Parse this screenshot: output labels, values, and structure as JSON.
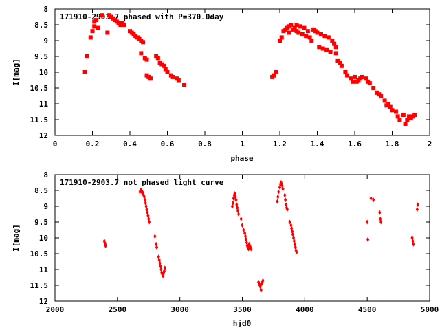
{
  "chart_data": [
    {
      "type": "scatter",
      "title": "171910-2903.7 phased with P=370.0day",
      "xlabel": "phase",
      "ylabel": "I[mag]",
      "xlim": [
        0,
        2
      ],
      "ylim": [
        8,
        12
      ],
      "y_inverted": true,
      "xticks": [
        "0",
        "0.2",
        "0.4",
        "0.6",
        "0.8",
        "1",
        "1.2",
        "1.4",
        "1.6",
        "1.8",
        "2"
      ],
      "yticks": [
        "8",
        "8.5",
        "9",
        "9.5",
        "10",
        "10.5",
        "11",
        "11.5",
        "12"
      ],
      "marker": "filled-square",
      "color": "#ff0000",
      "series": [
        {
          "x": [
            0.16,
            0.17,
            0.19,
            0.2,
            0.21,
            0.21,
            0.22,
            0.23,
            0.25,
            0.28,
            0.29,
            0.3,
            0.31,
            0.32,
            0.33,
            0.34,
            0.35,
            0.36,
            0.36,
            0.37,
            0.4,
            0.41,
            0.42,
            0.43,
            0.44,
            0.45,
            0.46,
            0.46,
            0.47,
            0.48,
            0.49,
            0.49,
            0.5,
            0.51,
            0.54,
            0.55,
            0.56,
            0.57,
            0.58,
            0.59,
            0.6,
            0.62,
            0.63,
            0.65,
            0.66,
            0.69,
            1.16,
            1.17,
            1.18,
            1.2,
            1.21,
            1.22,
            1.23,
            1.24,
            1.25,
            1.25,
            1.26,
            1.27,
            1.28,
            1.29,
            1.29,
            1.3,
            1.31,
            1.32,
            1.33,
            1.34,
            1.35,
            1.36,
            1.37,
            1.38,
            1.39,
            1.4,
            1.41,
            1.42,
            1.43,
            1.44,
            1.45,
            1.46,
            1.47,
            1.48,
            1.49,
            1.5,
            1.5,
            1.51,
            1.52,
            1.53,
            1.55,
            1.56,
            1.58,
            1.59,
            1.6,
            1.61,
            1.62,
            1.63,
            1.64,
            1.66,
            1.67,
            1.68,
            1.7,
            1.72,
            1.73,
            1.74,
            1.76,
            1.77,
            1.78,
            1.79,
            1.8,
            1.82,
            1.83,
            1.84,
            1.86,
            1.87,
            1.88,
            1.89,
            1.9,
            1.91,
            1.92
          ],
          "y": [
            10.0,
            9.5,
            8.9,
            8.7,
            8.55,
            8.4,
            8.35,
            8.6,
            8.2,
            8.75,
            8.2,
            8.25,
            8.3,
            8.35,
            8.4,
            8.45,
            8.5,
            8.45,
            8.45,
            8.5,
            8.7,
            8.75,
            8.8,
            8.85,
            8.9,
            8.95,
            9.0,
            9.4,
            9.05,
            9.55,
            9.6,
            10.1,
            10.15,
            10.2,
            9.5,
            9.55,
            9.7,
            9.75,
            9.8,
            9.9,
            10.0,
            10.1,
            10.15,
            10.2,
            10.25,
            10.4,
            10.15,
            10.1,
            10.0,
            9.0,
            8.9,
            8.7,
            8.65,
            8.6,
            8.55,
            8.75,
            8.5,
            8.65,
            8.6,
            8.7,
            8.5,
            8.75,
            8.55,
            8.8,
            8.6,
            8.85,
            8.7,
            8.9,
            9.0,
            8.65,
            8.7,
            8.75,
            9.2,
            8.8,
            9.25,
            8.85,
            9.3,
            8.9,
            9.35,
            9.0,
            9.1,
            9.4,
            9.2,
            9.65,
            9.7,
            9.8,
            10.0,
            10.1,
            10.2,
            10.3,
            10.15,
            10.3,
            10.25,
            10.2,
            10.15,
            10.2,
            10.3,
            10.35,
            10.5,
            10.65,
            10.7,
            10.75,
            10.9,
            11.05,
            11.0,
            11.1,
            11.2,
            11.25,
            11.4,
            11.5,
            11.35,
            11.65,
            11.5,
            11.4,
            11.45,
            11.4,
            11.35
          ]
        }
      ]
    },
    {
      "type": "scatter",
      "title": "171910-2903.7 not phased light curve",
      "xlabel": "hjd0",
      "ylabel": "I[mag]",
      "xlim": [
        2000,
        5000
      ],
      "ylim": [
        8,
        12
      ],
      "y_inverted": true,
      "xticks": [
        "2000",
        "2500",
        "3000",
        "3500",
        "4000",
        "4500",
        "5000"
      ],
      "yticks": [
        "8",
        "8.5",
        "9",
        "9.5",
        "10",
        "10.5",
        "11",
        "11.5",
        "12"
      ],
      "marker": "small-diamond",
      "color": "#ff0000",
      "series": [
        {
          "x": [
            2395,
            2398,
            2402,
            2405,
            2680,
            2685,
            2690,
            2695,
            2700,
            2705,
            2710,
            2715,
            2720,
            2725,
            2730,
            2735,
            2740,
            2745,
            2750,
            2755,
            2800,
            2810,
            2815,
            2830,
            2835,
            2840,
            2845,
            2850,
            2855,
            2860,
            2865,
            2870,
            2875,
            2880,
            3420,
            3425,
            3430,
            3435,
            3440,
            3445,
            3450,
            3455,
            3460,
            3465,
            3470,
            3490,
            3500,
            3510,
            3520,
            3525,
            3530,
            3535,
            3540,
            3545,
            3550,
            3555,
            3560,
            3565,
            3570,
            3630,
            3635,
            3640,
            3645,
            3650,
            3655,
            3660,
            3665,
            3780,
            3785,
            3790,
            3800,
            3805,
            3810,
            3815,
            3820,
            3825,
            3840,
            3845,
            3850,
            3855,
            3860,
            3880,
            3890,
            3895,
            3900,
            3905,
            3910,
            3915,
            3920,
            3925,
            3930,
            3935,
            4500,
            4505,
            4530,
            4550,
            4600,
            4605,
            4610,
            4860,
            4865,
            4870,
            4900,
            4905
          ],
          "y": [
            10.1,
            10.15,
            10.2,
            10.25,
            8.55,
            8.5,
            8.5,
            8.55,
            8.55,
            8.6,
            8.65,
            8.7,
            8.8,
            8.9,
            9.0,
            9.1,
            9.2,
            9.3,
            9.4,
            9.5,
            9.95,
            10.2,
            10.3,
            10.6,
            10.7,
            10.8,
            10.9,
            11.0,
            11.1,
            11.15,
            11.2,
            11.1,
            11.05,
            10.95,
            9.0,
            8.9,
            8.75,
            8.65,
            8.6,
            8.7,
            8.8,
            8.95,
            9.05,
            9.15,
            9.25,
            9.4,
            9.6,
            9.75,
            9.85,
            9.95,
            10.05,
            10.15,
            10.25,
            10.3,
            10.35,
            10.2,
            10.25,
            10.3,
            10.35,
            11.4,
            11.45,
            11.5,
            11.55,
            11.65,
            11.45,
            11.4,
            11.35,
            8.85,
            8.7,
            8.55,
            8.4,
            8.3,
            8.25,
            8.3,
            8.35,
            8.45,
            8.65,
            8.8,
            8.95,
            9.05,
            9.1,
            9.5,
            9.6,
            9.7,
            9.8,
            9.9,
            10.0,
            10.1,
            10.2,
            10.3,
            10.4,
            10.45,
            9.5,
            10.05,
            8.75,
            8.8,
            9.2,
            9.4,
            9.5,
            10.0,
            10.1,
            10.2,
            9.1,
            8.95
          ]
        }
      ]
    }
  ]
}
